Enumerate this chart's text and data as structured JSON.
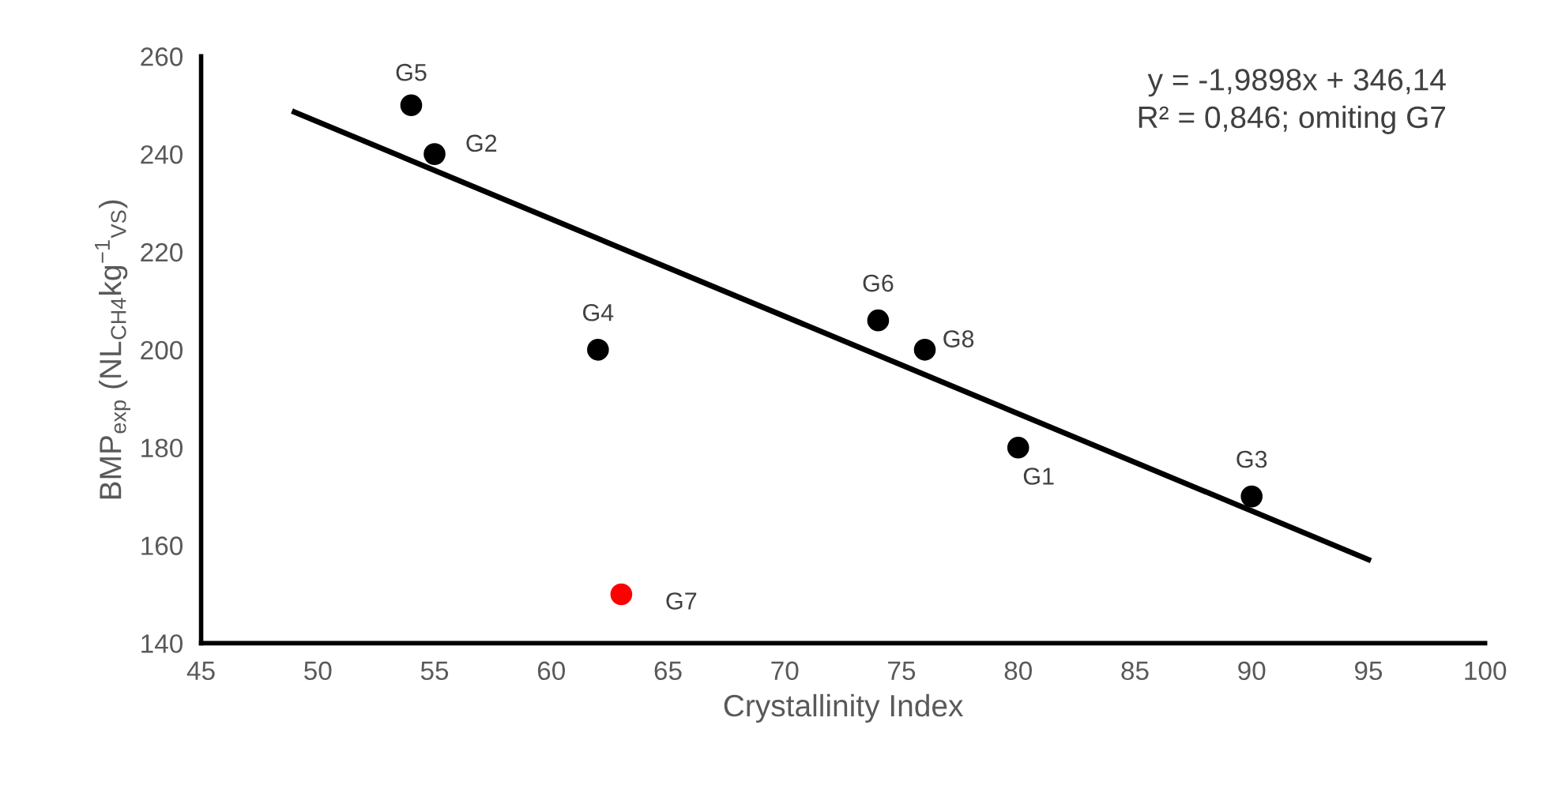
{
  "chart_data": {
    "type": "scatter",
    "xlabel": "Crystallinity Index",
    "ylabel": "BMP$_{exp}$ (NL$_{CH4}$kg$^{−1}$$_{VS}$)",
    "series": [
      {
        "marker": "circle",
        "color": "#000000",
        "x": [
          54,
          55,
          62,
          74,
          76,
          80,
          90
        ],
        "values": [
          250,
          240,
          200,
          206,
          200,
          180,
          170
        ]
      },
      {
        "marker": "circle",
        "color": "#ff0000",
        "x": [
          63
        ],
        "values": [
          150
        ]
      },
      {
        "type": "line",
        "color": "#000000",
        "x": [
          49,
          95
        ],
        "values": [
          248.6,
          157.1
        ]
      }
    ],
    "annotations": [
      {
        "text": "G5",
        "x": 54,
        "y": 250
      },
      {
        "text": "G2",
        "x": 55,
        "y": 240
      },
      {
        "text": "G4",
        "x": 62,
        "y": 200
      },
      {
        "text": "G7",
        "x": 63,
        "y": 150
      },
      {
        "text": "G6",
        "x": 74,
        "y": 206
      },
      {
        "text": "G8",
        "x": 76,
        "y": 200
      },
      {
        "text": "G1",
        "x": 80,
        "y": 180
      },
      {
        "text": "G3",
        "x": 90,
        "y": 170
      },
      "y = -1,9898x + 346,14\nR² = 0,846; omiting G7"
    ],
    "xlim": [
      45,
      100
    ],
    "xticks": [
      45,
      50,
      55,
      60,
      65,
      70,
      75,
      80,
      85,
      90,
      95,
      100
    ],
    "ylim": [
      140,
      260
    ],
    "yticks": [
      140,
      160,
      180,
      200,
      220,
      240,
      260
    ],
    "grid": false,
    "legend": false
  }
}
